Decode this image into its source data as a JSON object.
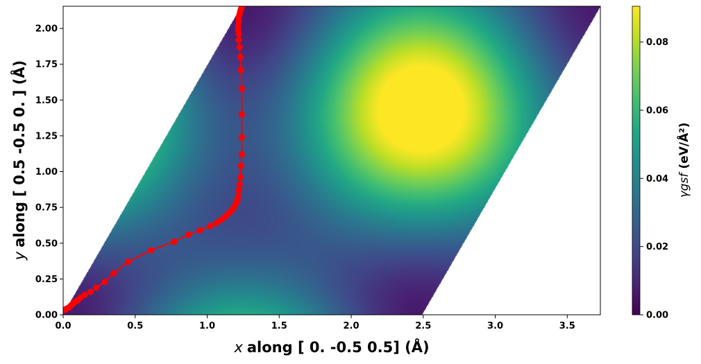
{
  "chart_data": {
    "type": "heatmap",
    "subtype": "gamma-surface with path overlay",
    "title": "",
    "xlabel_var": "x",
    "xlabel": "along [ 0.  -0.5  0.5] (Å)",
    "ylabel_var": "y",
    "ylabel": "along [ 0.5 -0.5  0. ] (Å)",
    "colorbar_label": "γgsf (eV/Å²)",
    "colorbar_label_var": "γgsf",
    "colorbar_label_unit": "(eV/Å²)",
    "colormap": "viridis",
    "xlim": [
      0.0,
      3.73
    ],
    "ylim": [
      0.0,
      2.155
    ],
    "clim": [
      0.0,
      0.0905
    ],
    "xticks": [
      "0.0",
      "0.5",
      "1.0",
      "1.5",
      "2.0",
      "2.5",
      "3.0",
      "3.5"
    ],
    "yticks": [
      "0.00",
      "0.25",
      "0.50",
      "0.75",
      "1.00",
      "1.25",
      "1.50",
      "1.75",
      "2.00"
    ],
    "cbar_ticks": [
      "0.00",
      "0.02",
      "0.04",
      "0.06",
      "0.08"
    ],
    "cell": {
      "vertices": [
        [
          0.0,
          0.0
        ],
        [
          2.49,
          0.0
        ],
        [
          3.73,
          2.155
        ],
        [
          1.24,
          2.155
        ]
      ]
    },
    "surface_features": [
      {
        "kind": "maximum",
        "x": 2.49,
        "y": 1.44,
        "value": 0.09
      },
      {
        "kind": "minimum",
        "x": 0.0,
        "y": 0.0,
        "value": 0.0
      },
      {
        "kind": "minimum",
        "x": 1.24,
        "y": 0.72,
        "value": 0.004
      }
    ],
    "series": [
      {
        "color": "#ff0000",
        "marker": "circle",
        "x": [
          0.0,
          0.01,
          0.02,
          0.03,
          0.04,
          0.05,
          0.06,
          0.07,
          0.08,
          0.1,
          0.12,
          0.15,
          0.19,
          0.23,
          0.29,
          0.35,
          0.45,
          0.61,
          0.77,
          0.87,
          0.95,
          1.02,
          1.06,
          1.09,
          1.12,
          1.14,
          1.16,
          1.18,
          1.19,
          1.2,
          1.21,
          1.215,
          1.22,
          1.225,
          1.23,
          1.235,
          1.24,
          1.24,
          1.24,
          1.24,
          1.235,
          1.23,
          1.225,
          1.22,
          1.22,
          1.215,
          1.215,
          1.22,
          1.22,
          1.225,
          1.23,
          1.235,
          1.24
        ],
        "y": [
          0.03,
          0.035,
          0.04,
          0.045,
          0.05,
          0.06,
          0.07,
          0.08,
          0.09,
          0.1,
          0.12,
          0.14,
          0.16,
          0.19,
          0.23,
          0.29,
          0.37,
          0.45,
          0.51,
          0.56,
          0.59,
          0.62,
          0.64,
          0.66,
          0.68,
          0.7,
          0.72,
          0.74,
          0.76,
          0.78,
          0.8,
          0.83,
          0.87,
          0.91,
          0.96,
          1.04,
          1.12,
          1.24,
          1.4,
          1.58,
          1.71,
          1.8,
          1.87,
          1.92,
          1.96,
          1.99,
          2.02,
          2.05,
          2.08,
          2.1,
          2.12,
          2.135,
          2.15
        ]
      }
    ]
  }
}
